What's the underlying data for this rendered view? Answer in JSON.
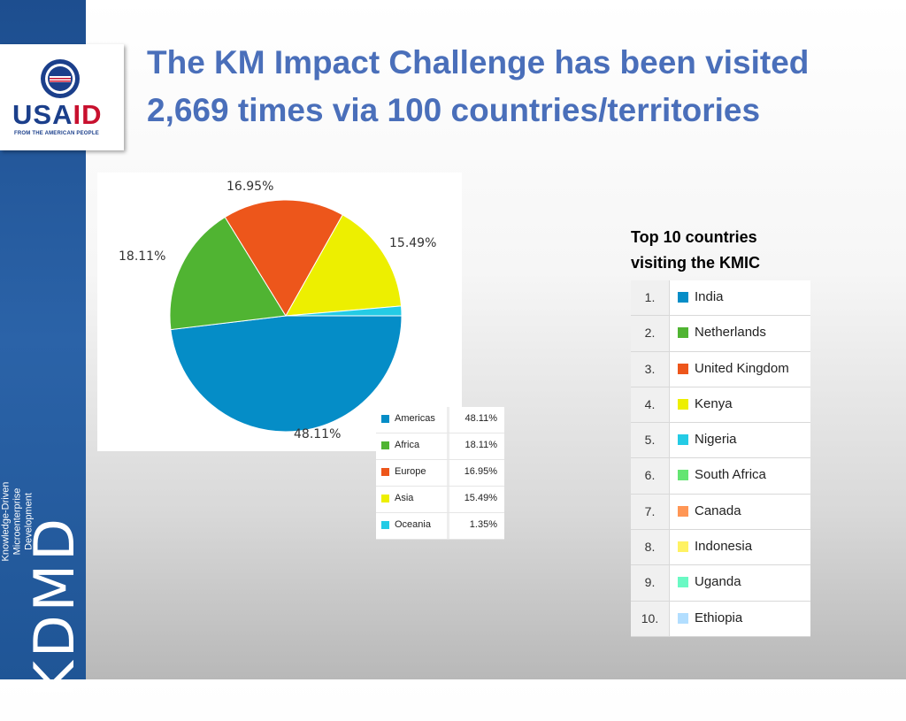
{
  "logo": {
    "name": "USAID",
    "usa": "USA",
    "aid": "ID",
    "tagline": "FROM THE AMERICAN PEOPLE"
  },
  "brand": {
    "sub_lines": [
      "Knowledge-Driven",
      "Microenterprise",
      "Development"
    ],
    "name": "KDMD"
  },
  "title_lines": [
    "The KM Impact Challenge has been visited",
    "2,669 times via 100 countries/territories"
  ],
  "chart_data": {
    "type": "pie",
    "categories": [
      "Americas",
      "Africa",
      "Europe",
      "Asia",
      "Oceania"
    ],
    "values": [
      48.11,
      18.11,
      16.95,
      15.49,
      1.35
    ],
    "value_labels": [
      "48.11%",
      "18.11%",
      "16.95%",
      "15.49%",
      "1.35%"
    ],
    "colors": [
      "#058dc7",
      "#50b432",
      "#ed561b",
      "#edef00",
      "#24cbe5"
    ],
    "legend_placement": "bottom-right"
  },
  "top10": {
    "heading_lines": [
      "Top 10 countries",
      "visiting the KMIC"
    ],
    "rows": [
      {
        "rank": "1.",
        "country": "India",
        "color": "#058dc7"
      },
      {
        "rank": "2.",
        "country": "Netherlands",
        "color": "#50b432"
      },
      {
        "rank": "3.",
        "country": "United Kingdom",
        "color": "#ed561b"
      },
      {
        "rank": "4.",
        "country": "Kenya",
        "color": "#edef00"
      },
      {
        "rank": "5.",
        "country": "Nigeria",
        "color": "#24cbe5"
      },
      {
        "rank": "6.",
        "country": "South Africa",
        "color": "#64e572"
      },
      {
        "rank": "7.",
        "country": "Canada",
        "color": "#ff9655"
      },
      {
        "rank": "8.",
        "country": "Indonesia",
        "color": "#fff263"
      },
      {
        "rank": "9.",
        "country": "Uganda",
        "color": "#6af9c4"
      },
      {
        "rank": "10.",
        "country": "Ethiopia",
        "color": "#b2deff"
      }
    ]
  }
}
